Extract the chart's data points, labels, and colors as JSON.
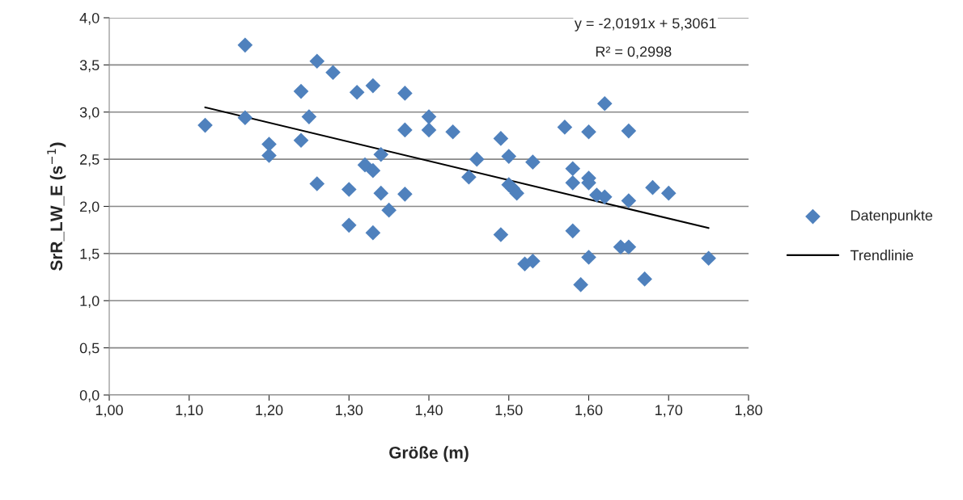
{
  "chart_data": {
    "type": "scatter",
    "xlabel": "Größe (m)",
    "ylabel": "SrR_LW_E (s$^{−1}$)",
    "xlim": [
      1.0,
      1.8
    ],
    "xticks": [
      {
        "value": 1.0,
        "label": "1,00"
      },
      {
        "value": 1.1,
        "label": "1,10"
      },
      {
        "value": 1.2,
        "label": "1,20"
      },
      {
        "value": 1.3,
        "label": "1,30"
      },
      {
        "value": 1.4,
        "label": "1,40"
      },
      {
        "value": 1.5,
        "label": "1,50"
      },
      {
        "value": 1.6,
        "label": "1,60"
      },
      {
        "value": 1.7,
        "label": "1,70"
      },
      {
        "value": 1.8,
        "label": "1,80"
      }
    ],
    "ylim": [
      0,
      4.0
    ],
    "yticks": [
      {
        "value": 0,
        "label": "0,0"
      },
      {
        "value": 0.5,
        "label": "0,5"
      },
      {
        "value": 1.0,
        "label": "1,0"
      },
      {
        "value": 1.5,
        "label": "1,5"
      },
      {
        "value": 2.0,
        "label": "2,0"
      },
      {
        "value": 2.5,
        "label": "2,5"
      },
      {
        "value": 3.0,
        "label": "3,0"
      },
      {
        "value": 3.5,
        "label": "3,5"
      },
      {
        "value": 4.0,
        "label": "4,0"
      }
    ],
    "grid": "y",
    "legend": "right",
    "marker": "diamond",
    "series": [
      {
        "name": "Datenpunkte",
        "color": "#4f81bd",
        "x": [
          1.12,
          1.17,
          1.17,
          1.2,
          1.2,
          1.24,
          1.24,
          1.25,
          1.26,
          1.26,
          1.28,
          1.3,
          1.3,
          1.31,
          1.32,
          1.33,
          1.33,
          1.33,
          1.34,
          1.34,
          1.35,
          1.37,
          1.37,
          1.37,
          1.4,
          1.4,
          1.43,
          1.45,
          1.46,
          1.49,
          1.49,
          1.5,
          1.5,
          1.505,
          1.51,
          1.52,
          1.53,
          1.53,
          1.57,
          1.58,
          1.58,
          1.58,
          1.59,
          1.6,
          1.6,
          1.6,
          1.6,
          1.61,
          1.62,
          1.62,
          1.64,
          1.65,
          1.65,
          1.65,
          1.67,
          1.68,
          1.7,
          1.75
        ],
        "values": [
          2.86,
          3.71,
          2.94,
          2.66,
          2.54,
          3.22,
          2.7,
          2.95,
          3.54,
          2.24,
          3.42,
          2.18,
          1.8,
          3.21,
          2.44,
          3.28,
          2.38,
          1.72,
          2.55,
          2.14,
          1.96,
          3.2,
          2.81,
          2.13,
          2.95,
          2.81,
          2.79,
          2.31,
          2.5,
          2.72,
          1.7,
          2.53,
          2.23,
          2.19,
          2.14,
          1.39,
          1.42,
          2.47,
          2.84,
          2.25,
          2.4,
          1.74,
          1.17,
          2.79,
          2.3,
          2.25,
          1.46,
          2.12,
          3.09,
          2.1,
          1.57,
          1.57,
          2.8,
          2.06,
          1.23,
          2.2,
          2.14,
          1.45
        ]
      },
      {
        "name": "Trendlinie",
        "type": "line",
        "color": "#000000",
        "marker": "none",
        "x": [
          1.12,
          1.75
        ],
        "values": [
          3.05,
          1.77
        ]
      }
    ],
    "annotations": [
      "y = -2,0191x + 5,3061",
      "R² = 0,2998"
    ]
  }
}
